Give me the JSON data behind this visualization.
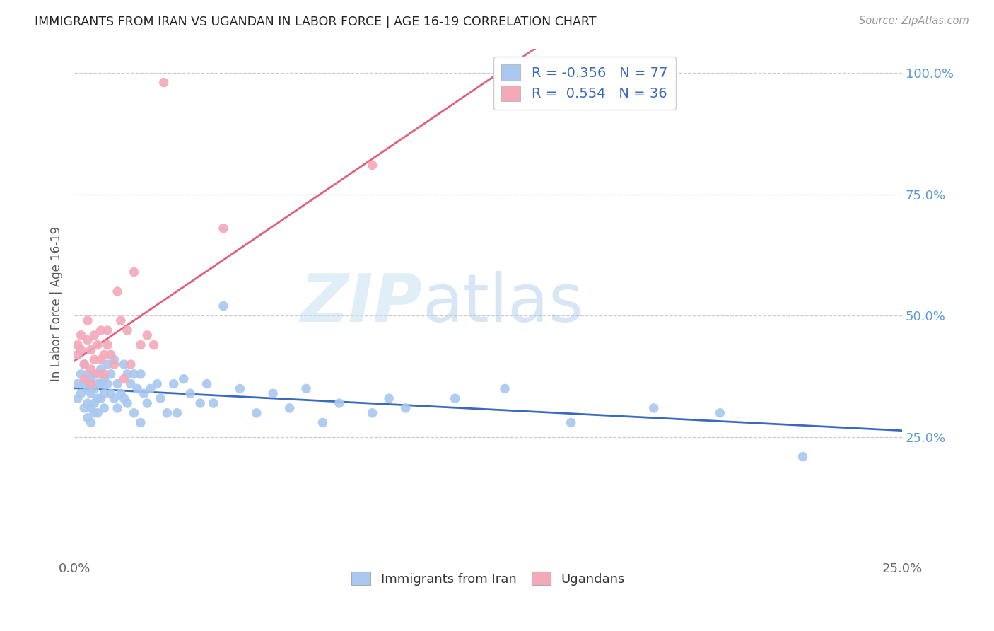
{
  "title": "IMMIGRANTS FROM IRAN VS UGANDAN IN LABOR FORCE | AGE 16-19 CORRELATION CHART",
  "source": "Source: ZipAtlas.com",
  "ylabel": "In Labor Force | Age 16-19",
  "xlim": [
    0.0,
    0.25
  ],
  "ylim": [
    0.0,
    1.05
  ],
  "xtick_vals": [
    0.0,
    0.05,
    0.1,
    0.15,
    0.2,
    0.25
  ],
  "xtick_labels": [
    "0.0%",
    "",
    "",
    "",
    "",
    "25.0%"
  ],
  "ytick_vals": [
    0.0,
    0.25,
    0.5,
    0.75,
    1.0
  ],
  "ytick_labels_right": [
    "",
    "25.0%",
    "50.0%",
    "75.0%",
    "100.0%"
  ],
  "legend_r_iran": "-0.356",
  "legend_n_iran": "77",
  "legend_r_uganda": "0.554",
  "legend_n_uganda": "36",
  "color_iran": "#a8c8f0",
  "color_uganda": "#f4a8b8",
  "line_color_iran": "#3a6abf",
  "line_color_uganda": "#e06080",
  "watermark_zip": "ZIP",
  "watermark_atlas": "atlas",
  "iran_x": [
    0.001,
    0.001,
    0.002,
    0.002,
    0.003,
    0.003,
    0.003,
    0.004,
    0.004,
    0.004,
    0.004,
    0.005,
    0.005,
    0.005,
    0.005,
    0.006,
    0.006,
    0.006,
    0.006,
    0.007,
    0.007,
    0.007,
    0.008,
    0.008,
    0.008,
    0.009,
    0.009,
    0.009,
    0.01,
    0.01,
    0.011,
    0.011,
    0.012,
    0.012,
    0.013,
    0.013,
    0.014,
    0.015,
    0.015,
    0.016,
    0.016,
    0.017,
    0.018,
    0.018,
    0.019,
    0.02,
    0.02,
    0.021,
    0.022,
    0.023,
    0.025,
    0.026,
    0.028,
    0.03,
    0.031,
    0.033,
    0.035,
    0.038,
    0.04,
    0.042,
    0.045,
    0.05,
    0.055,
    0.06,
    0.065,
    0.07,
    0.075,
    0.08,
    0.09,
    0.095,
    0.1,
    0.115,
    0.13,
    0.15,
    0.175,
    0.195,
    0.22
  ],
  "iran_y": [
    0.36,
    0.33,
    0.38,
    0.34,
    0.4,
    0.36,
    0.31,
    0.38,
    0.35,
    0.32,
    0.29,
    0.37,
    0.34,
    0.31,
    0.28,
    0.38,
    0.35,
    0.32,
    0.3,
    0.36,
    0.33,
    0.3,
    0.39,
    0.36,
    0.33,
    0.37,
    0.34,
    0.31,
    0.4,
    0.36,
    0.38,
    0.34,
    0.41,
    0.33,
    0.36,
    0.31,
    0.34,
    0.4,
    0.33,
    0.38,
    0.32,
    0.36,
    0.38,
    0.3,
    0.35,
    0.38,
    0.28,
    0.34,
    0.32,
    0.35,
    0.36,
    0.33,
    0.3,
    0.36,
    0.3,
    0.37,
    0.34,
    0.32,
    0.36,
    0.32,
    0.52,
    0.35,
    0.3,
    0.34,
    0.31,
    0.35,
    0.28,
    0.32,
    0.3,
    0.33,
    0.31,
    0.33,
    0.35,
    0.28,
    0.31,
    0.3,
    0.21
  ],
  "uganda_x": [
    0.001,
    0.001,
    0.002,
    0.002,
    0.003,
    0.003,
    0.004,
    0.004,
    0.005,
    0.005,
    0.005,
    0.006,
    0.006,
    0.007,
    0.007,
    0.008,
    0.008,
    0.009,
    0.009,
    0.01,
    0.01,
    0.011,
    0.012,
    0.013,
    0.014,
    0.015,
    0.016,
    0.017,
    0.018,
    0.02,
    0.022,
    0.024,
    0.027,
    0.045,
    0.09,
    0.135
  ],
  "uganda_y": [
    0.44,
    0.42,
    0.46,
    0.43,
    0.4,
    0.37,
    0.49,
    0.45,
    0.43,
    0.39,
    0.36,
    0.46,
    0.41,
    0.44,
    0.38,
    0.47,
    0.41,
    0.42,
    0.38,
    0.47,
    0.44,
    0.42,
    0.4,
    0.55,
    0.49,
    0.37,
    0.47,
    0.4,
    0.59,
    0.44,
    0.46,
    0.44,
    0.98,
    0.68,
    0.81,
    0.98
  ]
}
